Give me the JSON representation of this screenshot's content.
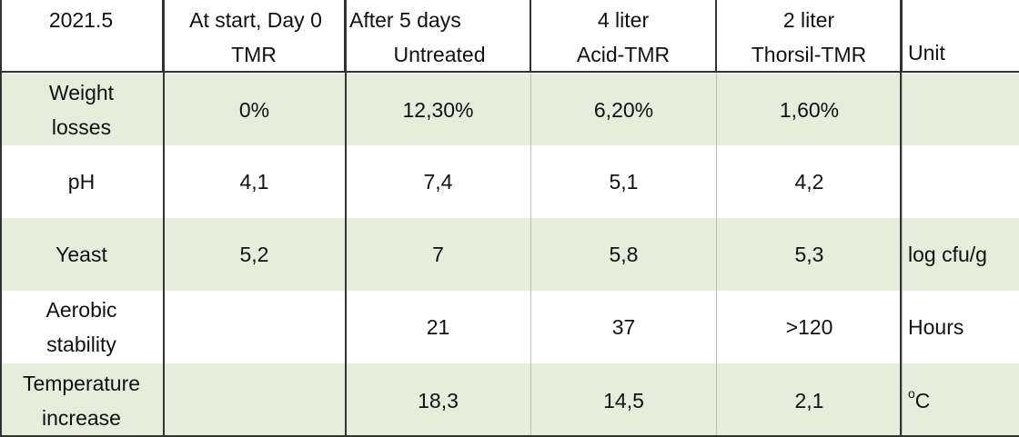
{
  "header": {
    "period": "2021.5",
    "col1": [
      "At start, Day 0",
      "TMR"
    ],
    "col2": [
      "After 5 days",
      "Untreated"
    ],
    "col3": [
      "4 liter",
      "Acid-TMR"
    ],
    "col4": [
      "2 liter",
      "Thorsil-TMR"
    ],
    "unit": "Unit"
  },
  "rows": [
    {
      "label": [
        "Weight",
        "losses"
      ],
      "values": [
        "0%",
        "12,30%",
        "6,20%",
        "1,60%"
      ],
      "unit": ""
    },
    {
      "label": [
        "pH"
      ],
      "values": [
        "4,1",
        "7,4",
        "5,1",
        "4,2"
      ],
      "unit": ""
    },
    {
      "label": [
        "Yeast"
      ],
      "values": [
        "5,2",
        "7",
        "5,8",
        "5,3"
      ],
      "unit": "log cfu/g"
    },
    {
      "label": [
        "Aerobic",
        "stability"
      ],
      "values": [
        "",
        "21",
        "37",
        ">120"
      ],
      "unit": "Hours"
    },
    {
      "label": [
        "Temperature",
        "increase"
      ],
      "values": [
        "",
        "18,3",
        "14,5",
        "2,1"
      ],
      "unit_sup": "o",
      "unit": "C"
    }
  ],
  "colors": {
    "shaded_row": "#e4eedb",
    "border": "#333333"
  }
}
